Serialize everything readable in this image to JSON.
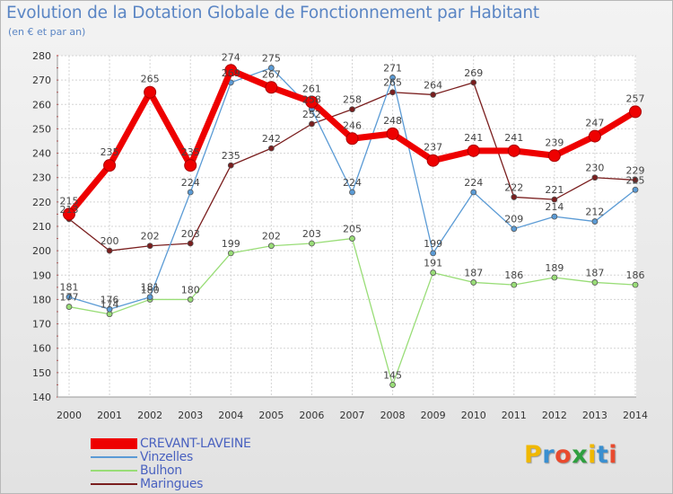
{
  "title": "Evolution de la Dotation Globale de Fonctionnement par Habitant",
  "subtitle": "(en € et par an)",
  "logo": {
    "text": "Proxiti",
    "letters": [
      {
        "ch": "P",
        "color": "#f0b800"
      },
      {
        "ch": "r",
        "color": "#3a8fd0"
      },
      {
        "ch": "o",
        "color": "#e94a2e"
      },
      {
        "ch": "x",
        "color": "#2f9f3f"
      },
      {
        "ch": "i",
        "color": "#f0b800"
      },
      {
        "ch": "t",
        "color": "#3a8fd0"
      },
      {
        "ch": "i",
        "color": "#e94a2e"
      }
    ]
  },
  "chart_data": {
    "type": "line",
    "title": "Evolution de la Dotation Globale de Fonctionnement par Habitant",
    "subtitle": "(en € et par an)",
    "x": [
      "2000",
      "2001",
      "2002",
      "2003",
      "2004",
      "2005",
      "2006",
      "2007",
      "2008",
      "2009",
      "2010",
      "2011",
      "2012",
      "2013",
      "2014"
    ],
    "ylim": [
      140,
      280
    ],
    "yticks": [
      140,
      150,
      160,
      170,
      180,
      190,
      200,
      210,
      220,
      230,
      240,
      250,
      260,
      270,
      280
    ],
    "grid": true,
    "legend_position": "bottom-left",
    "series": [
      {
        "name": "CREVANT-LAVEINE",
        "color": "#ee0000",
        "emphasis": true,
        "values": [
          215,
          235,
          265,
          235,
          274,
          267,
          261,
          246,
          248,
          237,
          241,
          241,
          239,
          247,
          257
        ]
      },
      {
        "name": "Vinzelles",
        "color": "#5b9bd5",
        "values": [
          181,
          176,
          181,
          224,
          269,
          275,
          258,
          224,
          271,
          199,
          224,
          209,
          214,
          212,
          225
        ]
      },
      {
        "name": "Bulhon",
        "color": "#99dd77",
        "values": [
          177,
          174,
          180,
          180,
          199,
          202,
          203,
          205,
          145,
          191,
          187,
          186,
          189,
          187,
          186
        ]
      },
      {
        "name": "Maringues",
        "color": "#7a1e1e",
        "values": [
          213,
          200,
          202,
          203,
          235,
          242,
          252,
          258,
          265,
          264,
          269,
          222,
          221,
          230,
          229
        ]
      }
    ]
  }
}
